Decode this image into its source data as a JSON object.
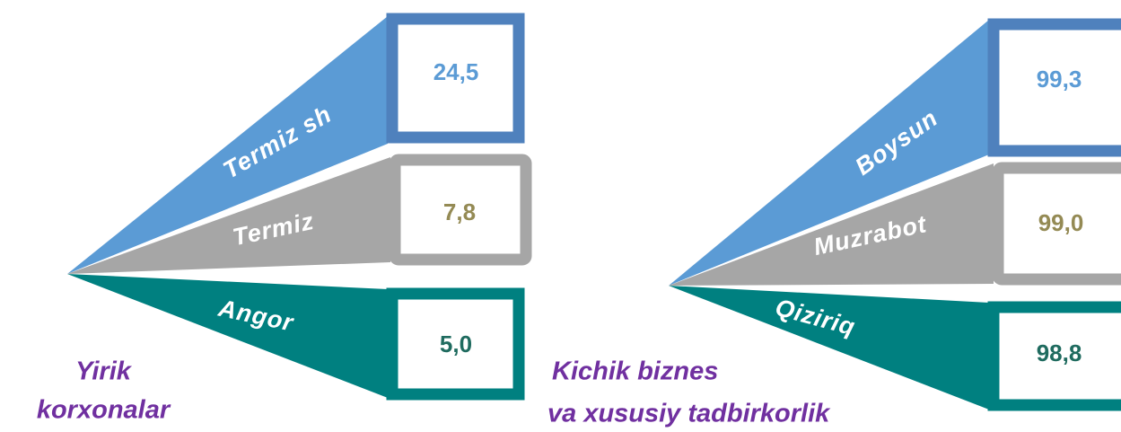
{
  "groups": [
    {
      "title": [
        "Yirik",
        "korxonalar"
      ],
      "items": [
        {
          "label": "Termiz sh",
          "value": "24,5"
        },
        {
          "label": "Termiz",
          "value": "7,8"
        },
        {
          "label": "Angor",
          "value": "5,0"
        }
      ]
    },
    {
      "title": [
        "Kichik biznes",
        "va xususiy tadbirkorlik"
      ],
      "items": [
        {
          "label": "Boysun",
          "value": "99,3"
        },
        {
          "label": "Muzrabot",
          "value": "99,0"
        },
        {
          "label": "Qiziriq",
          "value": "98,8"
        }
      ]
    }
  ]
}
